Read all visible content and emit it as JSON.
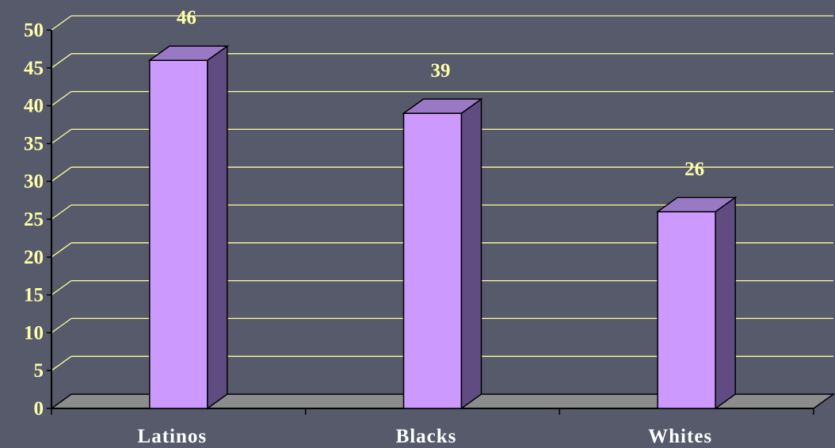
{
  "chart_data": {
    "type": "bar",
    "categories": [
      "Latinos",
      "Blacks",
      "Whites"
    ],
    "values": [
      46,
      39,
      26
    ],
    "data_labels": [
      "46",
      "39",
      "26"
    ],
    "ylim": [
      0,
      50
    ],
    "yticks": [
      "0",
      "5",
      "10",
      "15",
      "20",
      "25",
      "30",
      "35",
      "40",
      "45",
      "50"
    ],
    "grid": true,
    "style": "3d-column",
    "colors": {
      "background": "#565a6b",
      "gridline": "#ffff99",
      "bar_front": "#cc99ff",
      "bar_side": "#604c80",
      "bar_top": "#9a79c4",
      "floor": "#8c8c8c",
      "tick_text": "#ffffaa",
      "category_text": "#ffffff"
    }
  }
}
